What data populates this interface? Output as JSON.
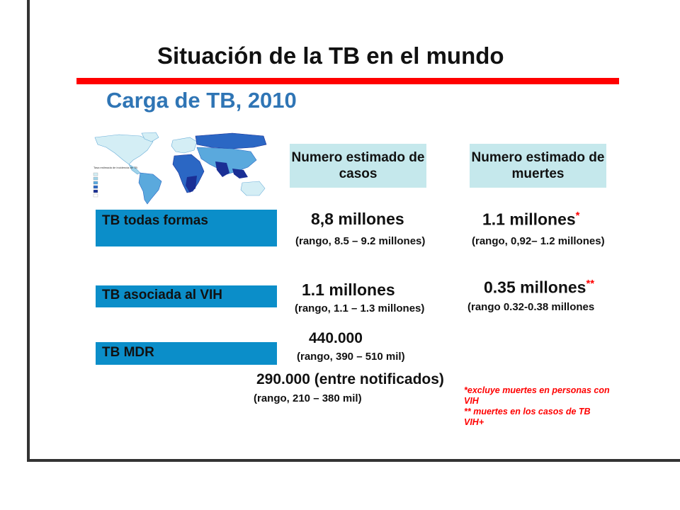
{
  "slide": {
    "title": "Situación de la TB en el mundo",
    "subtitle": "Carga de TB, 2010",
    "map": {
      "legend_title": "Tasa estimada de incidencia de TB por 100 000 habitantes",
      "legend_items": [
        "0–24",
        "25–49",
        "50–99",
        "100–299",
        "≥300",
        "Sin datos"
      ],
      "colors": [
        "#d4eef5",
        "#9fd3ea",
        "#5aa9dd",
        "#2b67c4",
        "#1a2f95",
        "#ffffff"
      ]
    },
    "headers": {
      "cases": "Numero estimado de casos",
      "deaths": "Numero estimado de muertes"
    },
    "rows": [
      {
        "label": "TB todas formas",
        "cases": "8,8 millones",
        "cases_range": "(rango, 8.5 – 9.2 millones)",
        "deaths": "1.1 millones",
        "deaths_mark": "*",
        "deaths_range": "(rango, 0,92– 1.2 millones)"
      },
      {
        "label": "TB asociada al VIH",
        "cases": "1.1 millones",
        "cases_range": "(rango, 1.1 – 1.3 millones)",
        "deaths": "0.35 millones",
        "deaths_mark": "**",
        "deaths_range": "(rango 0.32-0.38 millones"
      },
      {
        "label": "TB MDR",
        "cases": "440.000",
        "cases_range": "(rango, 390 – 510 mil)"
      }
    ],
    "notified": {
      "value": "290.000 (entre notificados)",
      "range": "(rango, 210 – 380 mil)"
    },
    "notes": {
      "note1": "*excluye muertes en personas con VIH",
      "note2": "** muertes en los casos de TB VIH+"
    }
  }
}
